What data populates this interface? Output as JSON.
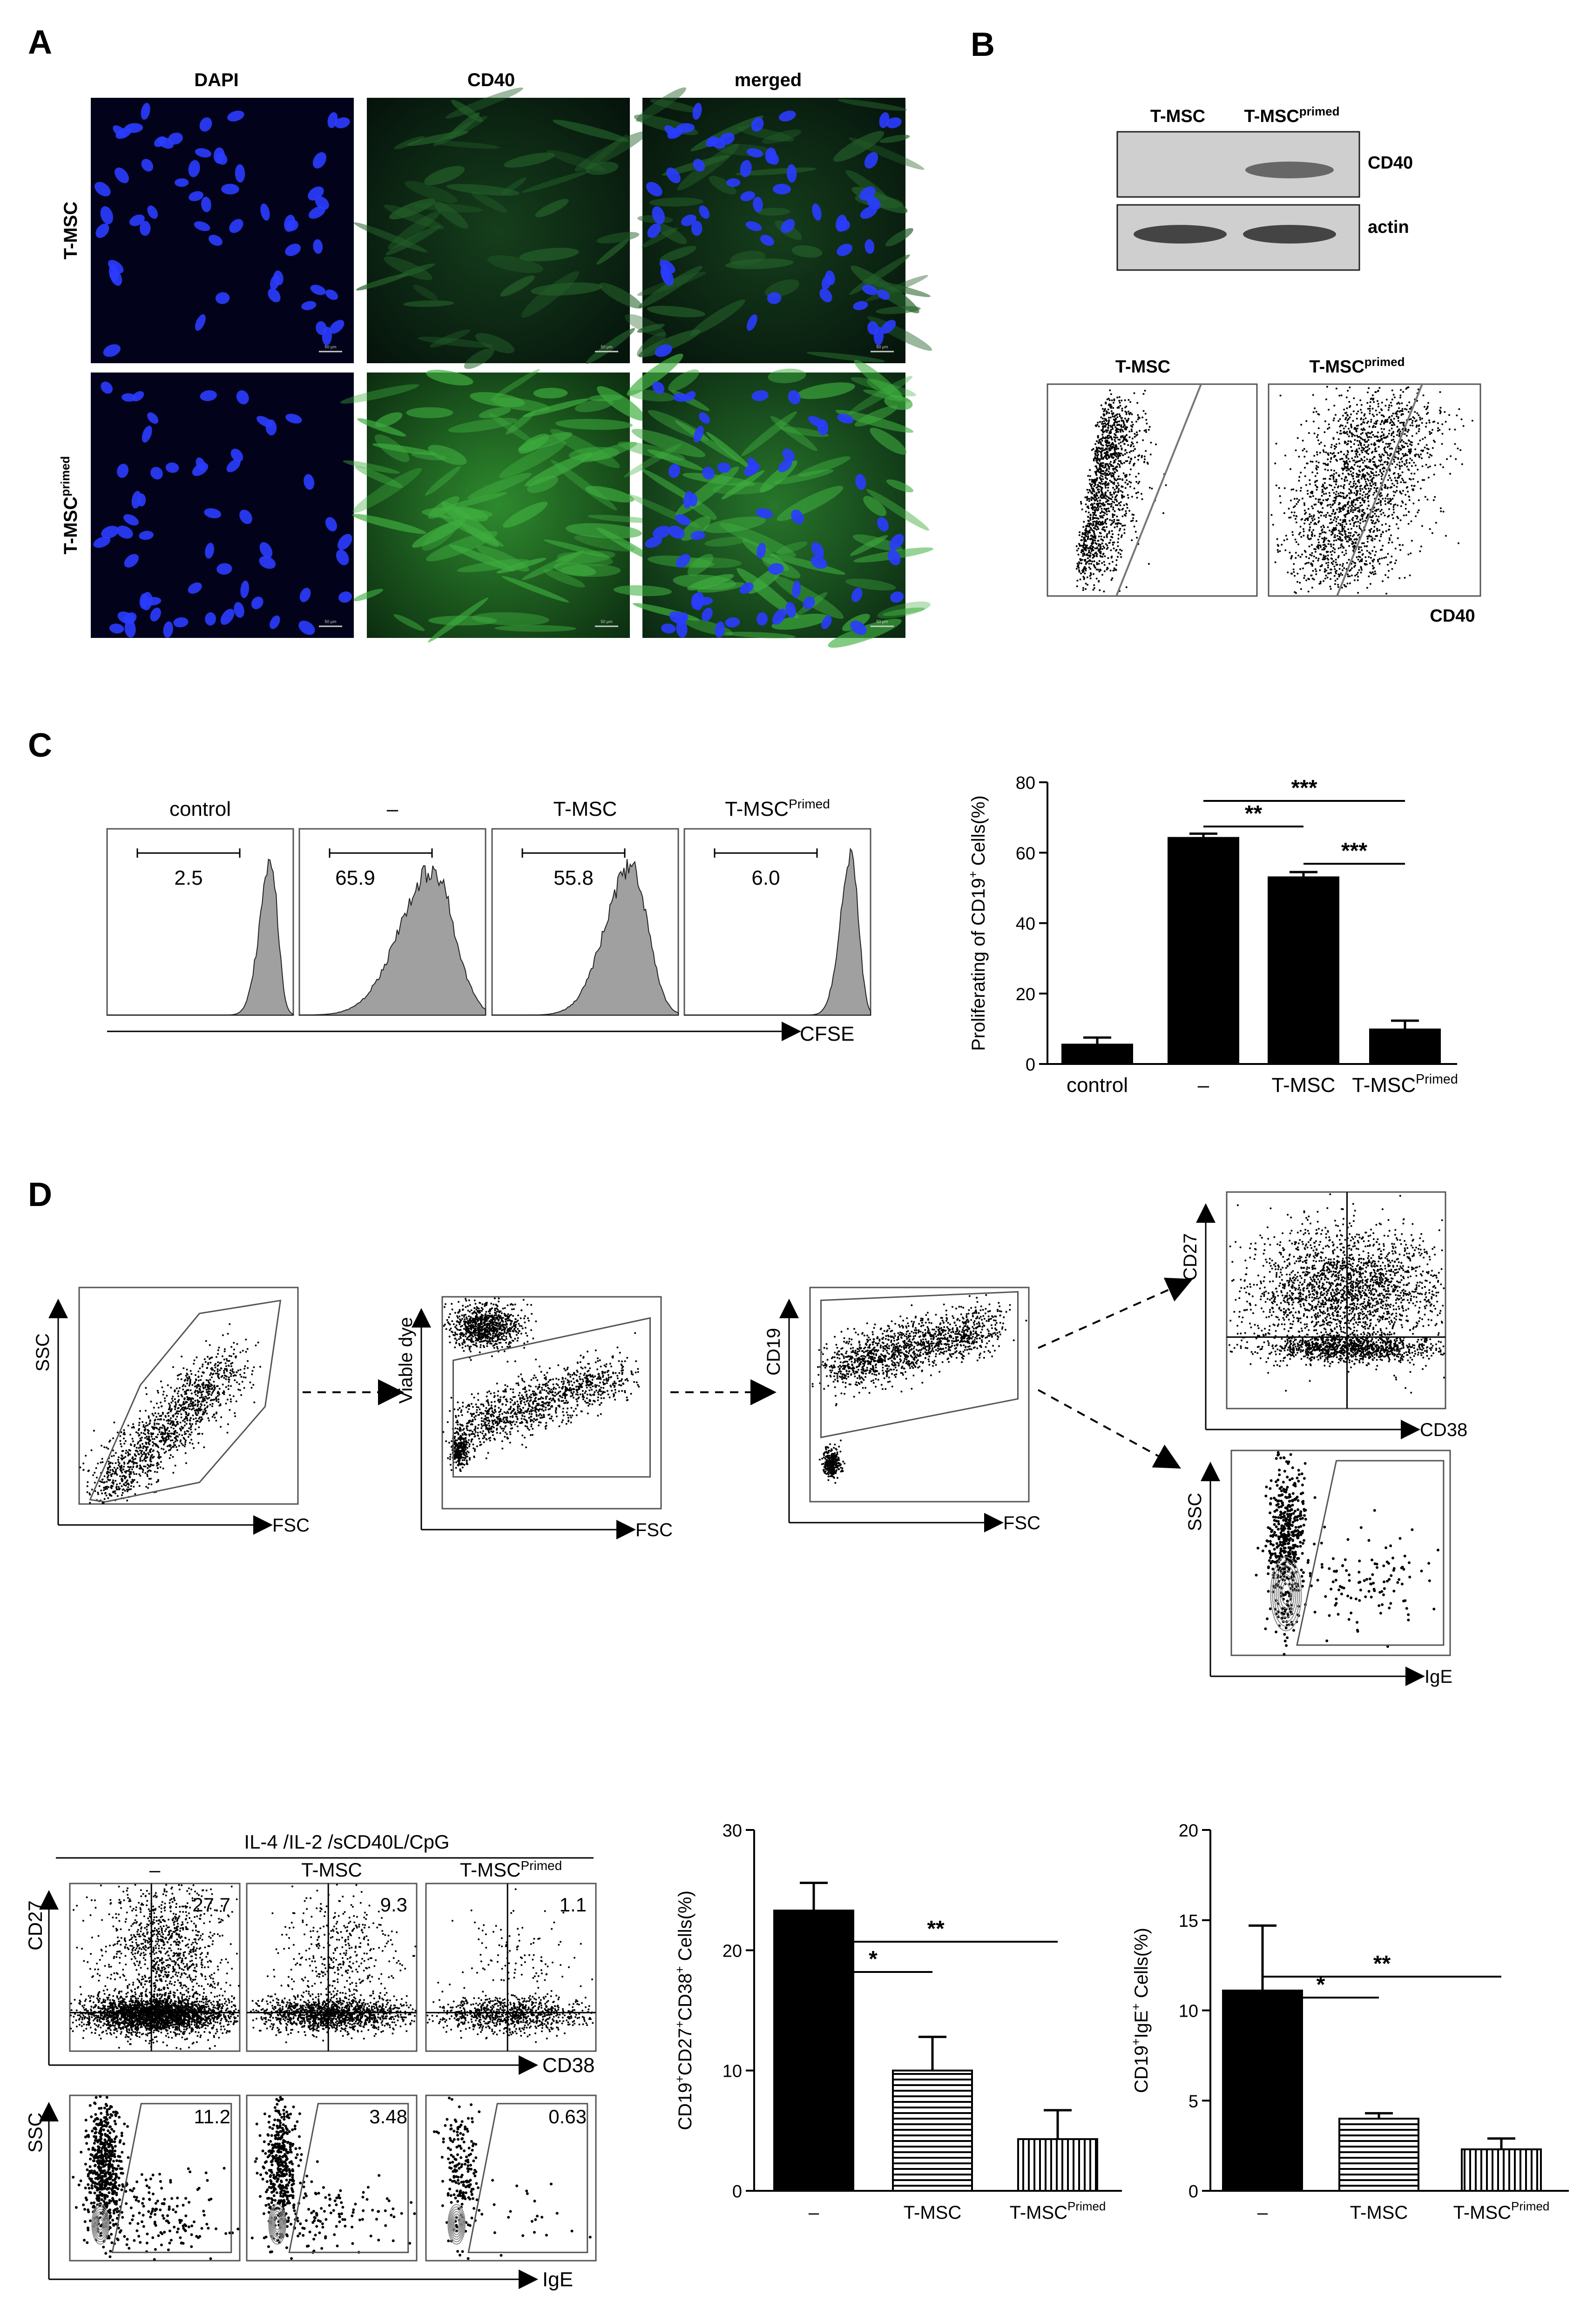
{
  "panel_labels": {
    "a": "A",
    "b": "B",
    "c": "C",
    "d": "D"
  },
  "panel_a": {
    "columns": [
      "DAPI",
      "CD40",
      "merged"
    ],
    "rows": [
      "T-MSC",
      "T-MSC",
      "primed"
    ],
    "scale_bar": "50 μm"
  },
  "panel_b": {
    "blot_headers": [
      "T-MSC",
      "T-MSC",
      "primed"
    ],
    "blot_bands": [
      "CD40",
      "actin"
    ],
    "flow_titles": [
      "T-MSC",
      "T-MSC",
      "primed"
    ],
    "flow_xlabel": "CD40"
  },
  "panel_c": {
    "hist_titles": [
      "control",
      "–",
      "T-MSC",
      "T-MSC",
      "Primed"
    ],
    "hist_values": [
      "2.5",
      "65.9",
      "55.8",
      "6.0"
    ],
    "hist_xlabel": "CFSE",
    "ylabel": [
      "Proliferating of CD19",
      "+",
      " Cells(%)"
    ],
    "categories": [
      "control",
      "–",
      "T-MSC",
      "T-MSC",
      "Primed"
    ],
    "ticks": [
      "0",
      "20",
      "40",
      "60",
      "80"
    ],
    "sig": [
      "**",
      "***",
      "***"
    ]
  },
  "panel_d_gating": {
    "plot1": {
      "x": "FSC",
      "y": "SSC"
    },
    "plot2": {
      "x": "FSC",
      "y": "Viable dye"
    },
    "plot3": {
      "x": "FSC",
      "y": "CD19"
    },
    "plot4": {
      "x": "CD38",
      "y": "CD27"
    },
    "plot5": {
      "x": "IgE",
      "y": "SSC"
    }
  },
  "panel_d_bottom": {
    "condition": "IL-4 /IL-2 /sCD40L/CpG",
    "col_titles": [
      "–",
      "T-MSC",
      "T-MSC",
      "Primed"
    ],
    "row1_values": [
      "27.7",
      "9.3",
      "1.1"
    ],
    "row2_values": [
      "11.2",
      "3.48",
      "0.63"
    ],
    "row1_axes": {
      "x": "CD38",
      "y": "CD27"
    },
    "row2_axes": {
      "x": "IgE",
      "y": "SSC"
    }
  },
  "bar_d1": {
    "ylabel": [
      "CD19",
      "+",
      "CD27",
      "+",
      "CD38",
      "+",
      " Cells(%)"
    ],
    "categories": [
      "–",
      "T-MSC",
      "T-MSC",
      "Primed"
    ],
    "ticks": [
      "0",
      "10",
      "20",
      "30"
    ],
    "sig": [
      "*",
      "**"
    ]
  },
  "bar_d2": {
    "ylabel": [
      "CD19",
      "+",
      "IgE",
      "+",
      " Cells(%)"
    ],
    "categories": [
      "–",
      "T-MSC",
      "T-MSC",
      "Primed"
    ],
    "ticks": [
      "0",
      "5",
      "10",
      "15",
      "20"
    ],
    "sig": [
      "*",
      "**"
    ]
  },
  "chart_data": [
    {
      "type": "bar",
      "panel": "C",
      "categories": [
        "control",
        "–",
        "T-MSC",
        "T-MSC Primed"
      ],
      "values": [
        5.5,
        64.2,
        53.0,
        9.8
      ],
      "errors": [
        2.0,
        1.2,
        1.5,
        2.5
      ],
      "ylabel": "Proliferating of CD19+ Cells(%)",
      "ylim": [
        0,
        80
      ],
      "colors": [
        "#000000",
        "#000000",
        "#000000",
        "#000000"
      ],
      "significance": [
        {
          "from": "–",
          "to": "T-MSC",
          "label": "**"
        },
        {
          "from": "–",
          "to": "T-MSC Primed",
          "label": "***"
        },
        {
          "from": "T-MSC",
          "to": "T-MSC Primed",
          "label": "***"
        }
      ]
    },
    {
      "type": "bar",
      "panel": "D",
      "categories": [
        "–",
        "T-MSC",
        "T-MSC Primed"
      ],
      "values": [
        23.3,
        10.0,
        4.3
      ],
      "errors": [
        2.3,
        2.8,
        2.4
      ],
      "ylabel": "CD19+CD27+CD38+ Cells(%)",
      "ylim": [
        0,
        30
      ],
      "fills": [
        "solid",
        "horizontal-stripes",
        "vertical-stripes"
      ],
      "significance": [
        {
          "from": "–",
          "to": "T-MSC",
          "label": "*"
        },
        {
          "from": "–",
          "to": "T-MSC Primed",
          "label": "**"
        }
      ]
    },
    {
      "type": "bar",
      "panel": "D",
      "categories": [
        "–",
        "T-MSC",
        "T-MSC Primed"
      ],
      "values": [
        11.1,
        4.0,
        2.3
      ],
      "errors": [
        3.6,
        0.3,
        0.6
      ],
      "ylabel": "CD19+IgE+ Cells(%)",
      "ylim": [
        0,
        20
      ],
      "fills": [
        "solid",
        "horizontal-stripes",
        "vertical-stripes"
      ],
      "significance": [
        {
          "from": "–",
          "to": "T-MSC",
          "label": "*"
        },
        {
          "from": "–",
          "to": "T-MSC Primed",
          "label": "**"
        }
      ]
    }
  ]
}
